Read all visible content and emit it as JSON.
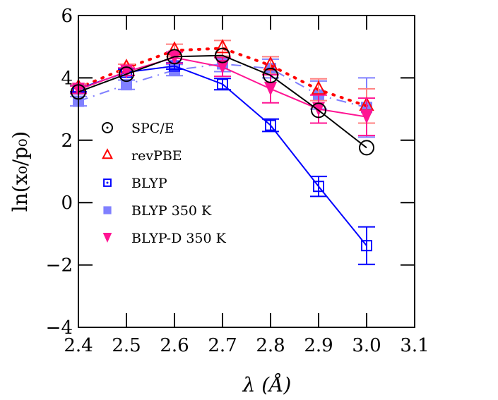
{
  "chart_data": {
    "type": "line",
    "title": "",
    "xlabel": "λ (Å)",
    "ylabel": "ln(x₀/p₀)",
    "xlim": [
      2.4,
      3.1
    ],
    "ylim": [
      -4,
      6
    ],
    "xticks": [
      "2.4",
      "2.5",
      "2.6",
      "2.7",
      "2.8",
      "2.9",
      "3.0",
      "3.1"
    ],
    "yticks": [
      "6",
      "4",
      "2",
      "0",
      "−2",
      "−4"
    ],
    "ytick_values": [
      6,
      4,
      2,
      0,
      -2,
      -4
    ],
    "xtick_values": [
      2.4,
      2.5,
      2.6,
      2.7,
      2.8,
      2.9,
      3.0,
      3.1
    ],
    "grid": false,
    "legend_position": "center-left",
    "x": [
      2.4,
      2.5,
      2.6,
      2.7,
      2.8,
      2.9,
      3.0
    ],
    "series": [
      {
        "name": "SPC/E",
        "color": "#000000",
        "marker": "open-circle",
        "line": "solid",
        "values": [
          3.55,
          4.12,
          4.68,
          4.72,
          4.08,
          2.96,
          1.76
        ],
        "errors": [
          0,
          0,
          0,
          0,
          0,
          0,
          0
        ]
      },
      {
        "name": "revPBE",
        "color": "#ff0000",
        "marker": "open-triangle-up",
        "line": "dotted",
        "values": [
          3.68,
          4.32,
          4.88,
          4.95,
          4.4,
          3.62,
          3.1
        ],
        "errors": [
          0.12,
          0.12,
          0.2,
          0.25,
          0.28,
          0.35,
          0.55
        ]
      },
      {
        "name": "BLYP",
        "color": "#0000ff",
        "marker": "open-square",
        "line": "solid",
        "values": [
          3.65,
          4.18,
          4.38,
          3.8,
          2.48,
          0.52,
          -1.38
        ],
        "errors": [
          0.1,
          0.1,
          0.1,
          0.18,
          0.2,
          0.32,
          0.6
        ]
      },
      {
        "name": "BLYP 350 K",
        "color": "#8080ff",
        "marker": "filled-square",
        "line": "dash-dot",
        "values": [
          3.25,
          3.78,
          4.25,
          4.45,
          4.3,
          3.45,
          3.05
        ],
        "errors": [
          0.15,
          0.15,
          0.18,
          0.25,
          0.3,
          0.45,
          0.95
        ]
      },
      {
        "name": "BLYP-D 350 K",
        "color": "#ff1493",
        "marker": "filled-triangle-down",
        "line": "solid",
        "values": [
          3.62,
          4.2,
          4.65,
          4.35,
          3.65,
          3.0,
          2.75
        ],
        "errors": [
          0.12,
          0.12,
          0.18,
          0.3,
          0.45,
          0.45,
          0.6
        ]
      }
    ]
  }
}
